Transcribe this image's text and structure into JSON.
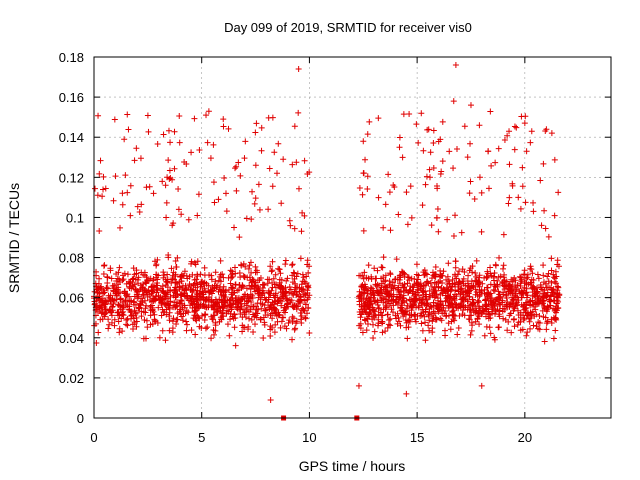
{
  "chart_data": {
    "type": "scatter",
    "title": "Day 099 of 2019, SRMTID for receiver vis0",
    "xlabel": "GPS time / hours",
    "ylabel": "SRMTID / TECUs",
    "xlim": [
      0,
      24
    ],
    "ylim": [
      0,
      0.18
    ],
    "x_ticks": [
      0,
      5,
      10,
      15,
      20
    ],
    "x_tick_labels": [
      "0",
      "5",
      "10",
      "15",
      "20"
    ],
    "y_ticks": [
      0,
      0.02,
      0.04,
      0.06,
      0.08,
      0.1,
      0.12,
      0.14,
      0.16,
      0.18
    ],
    "y_tick_labels": [
      "0",
      "0.02",
      "0.04",
      "0.06",
      "0.08",
      "0.1",
      "0.12",
      "0.14",
      "0.16",
      "0.18"
    ],
    "grid": true,
    "marker_color": "#e00000",
    "series": [
      {
        "name": "SRMTID",
        "marker": "plus",
        "segments": [
          {
            "x_start": 0.0,
            "x_end": 10.0,
            "point_count": 1300,
            "typical_y": [
              0.03,
              0.09
            ],
            "peak_y": 0.175
          },
          {
            "x_start": 12.3,
            "x_end": 21.6,
            "point_count": 1300,
            "typical_y": [
              0.03,
              0.09
            ],
            "peak_y": 0.176
          }
        ],
        "notable_points": [
          {
            "x": 1.4,
            "y": 0.139
          },
          {
            "x": 5.2,
            "y": 0.151
          },
          {
            "x": 6.0,
            "y": 0.149
          },
          {
            "x": 9.5,
            "y": 0.174
          },
          {
            "x": 12.5,
            "y": 0.138
          },
          {
            "x": 16.8,
            "y": 0.176
          },
          {
            "x": 16.7,
            "y": 0.158
          },
          {
            "x": 17.5,
            "y": 0.156
          },
          {
            "x": 20.0,
            "y": 0.147
          },
          {
            "x": 21.0,
            "y": 0.144
          },
          {
            "x": 8.2,
            "y": 0.009
          },
          {
            "x": 14.5,
            "y": 0.012
          },
          {
            "x": 12.3,
            "y": 0.016
          },
          {
            "x": 18.0,
            "y": 0.016
          }
        ]
      },
      {
        "name": "zero-value markers",
        "marker": "square",
        "points": [
          {
            "x": 8.8,
            "y": 0.0
          },
          {
            "x": 12.2,
            "y": 0.0
          }
        ]
      }
    ]
  }
}
